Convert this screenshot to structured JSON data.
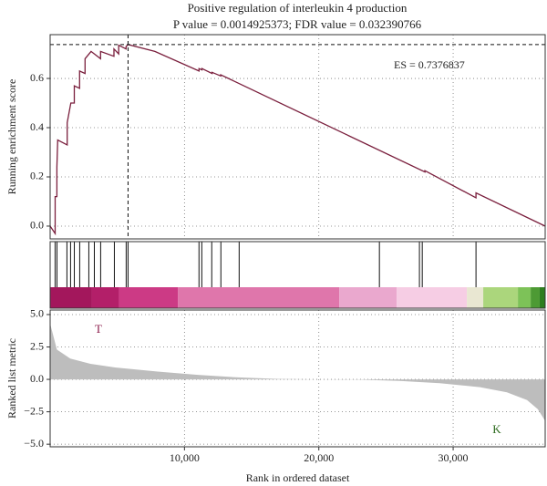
{
  "chart_data": [
    {
      "type": "line",
      "title": "Positive regulation of interleukin 4 production",
      "subtitle": "P value = 0.0014925373; FDR value = 0.032390766",
      "y_label": "Running enrichment score",
      "annotation": "ES = 0.7376837",
      "color": "#7a1f3d",
      "x": [
        0,
        370,
        370,
        500,
        500,
        560,
        1270,
        1270,
        1540,
        1800,
        1800,
        2190,
        2190,
        2600,
        2600,
        3050,
        3750,
        3750,
        4750,
        4750,
        5100,
        5100,
        5650,
        5650,
        5800,
        7800,
        11080,
        11080,
        11300,
        11300,
        12050,
        12050,
        12700,
        12700,
        27900,
        27900,
        31700,
        31700,
        36850
      ],
      "values": [
        0,
        -0.03,
        0.12,
        0.12,
        0.24,
        0.35,
        0.33,
        0.42,
        0.5,
        0.5,
        0.57,
        0.56,
        0.63,
        0.62,
        0.68,
        0.71,
        0.68,
        0.71,
        0.69,
        0.72,
        0.7,
        0.735,
        0.72,
        0.73,
        0.7376837,
        0.71,
        0.63,
        0.64,
        0.635,
        0.64,
        0.62,
        0.625,
        0.61,
        0.615,
        0.22,
        0.225,
        0.115,
        0.135,
        0
      ],
      "xlim": [
        0,
        36850
      ],
      "xticks": [
        10000,
        20000,
        30000
      ],
      "ylim": [
        -0.052,
        0.778
      ],
      "yticks": [
        {
          "value": 0,
          "label": "0.0"
        },
        {
          "value": 0.2,
          "label": "0.2"
        },
        {
          "value": 0.4,
          "label": "0.4"
        },
        {
          "value": 0.6,
          "label": "0.6"
        }
      ],
      "grid": true
    },
    {
      "type": "barcode",
      "color": "#111111",
      "hits": [
        370,
        510,
        1250,
        1520,
        1800,
        2200,
        2880,
        3290,
        3760,
        4780,
        5660,
        5800,
        11080,
        11290,
        12030,
        12710,
        14070,
        24510,
        27490,
        27700,
        31700
      ],
      "band_edges": [
        30,
        3090,
        5120,
        9520,
        21520,
        25800,
        31020,
        32240,
        34820,
        35770,
        36440,
        36850
      ],
      "band_colors": [
        "#a3175c",
        "#b31f69",
        "#cc3a85",
        "#df76ab",
        "#eaa8ce",
        "#f6cde4",
        "#e9e7d2",
        "#abd67c",
        "#7dc258",
        "#4d9a34",
        "#2e7d1f"
      ],
      "xlim": [
        0,
        36850
      ]
    },
    {
      "type": "area",
      "x_label": "Rank in ordered dataset",
      "y_label": "Ranked list metric",
      "color": "#bdbdbd",
      "annotations": [
        "T",
        "K"
      ],
      "annotation_colors": [
        "#8b1a4a",
        "#2e6b1f"
      ],
      "x": [
        0,
        500,
        1500,
        3000,
        5000,
        8000,
        11000,
        14000,
        17000,
        20000,
        23000,
        26000,
        29000,
        32000,
        34000,
        35500,
        36300,
        36850
      ],
      "values": [
        4.3,
        2.3,
        1.6,
        1.2,
        0.9,
        0.6,
        0.35,
        0.15,
        0.03,
        0,
        -0.02,
        -0.12,
        -0.3,
        -0.6,
        -1.0,
        -1.6,
        -2.3,
        -3.2
      ],
      "xlim": [
        0,
        36850
      ],
      "xticks": [
        {
          "value": 10000,
          "label": "10,000"
        },
        {
          "value": 20000,
          "label": "20,000"
        },
        {
          "value": 30000,
          "label": "30,000"
        }
      ],
      "ylim": [
        -5.2,
        5.35
      ],
      "yticks": [
        {
          "value": -5,
          "label": "−5.0"
        },
        {
          "value": -2.5,
          "label": "−2.5"
        },
        {
          "value": 0,
          "label": "0.0"
        },
        {
          "value": 2.5,
          "label": "2.5"
        },
        {
          "value": 5,
          "label": "5.0"
        }
      ],
      "grid": true
    }
  ]
}
